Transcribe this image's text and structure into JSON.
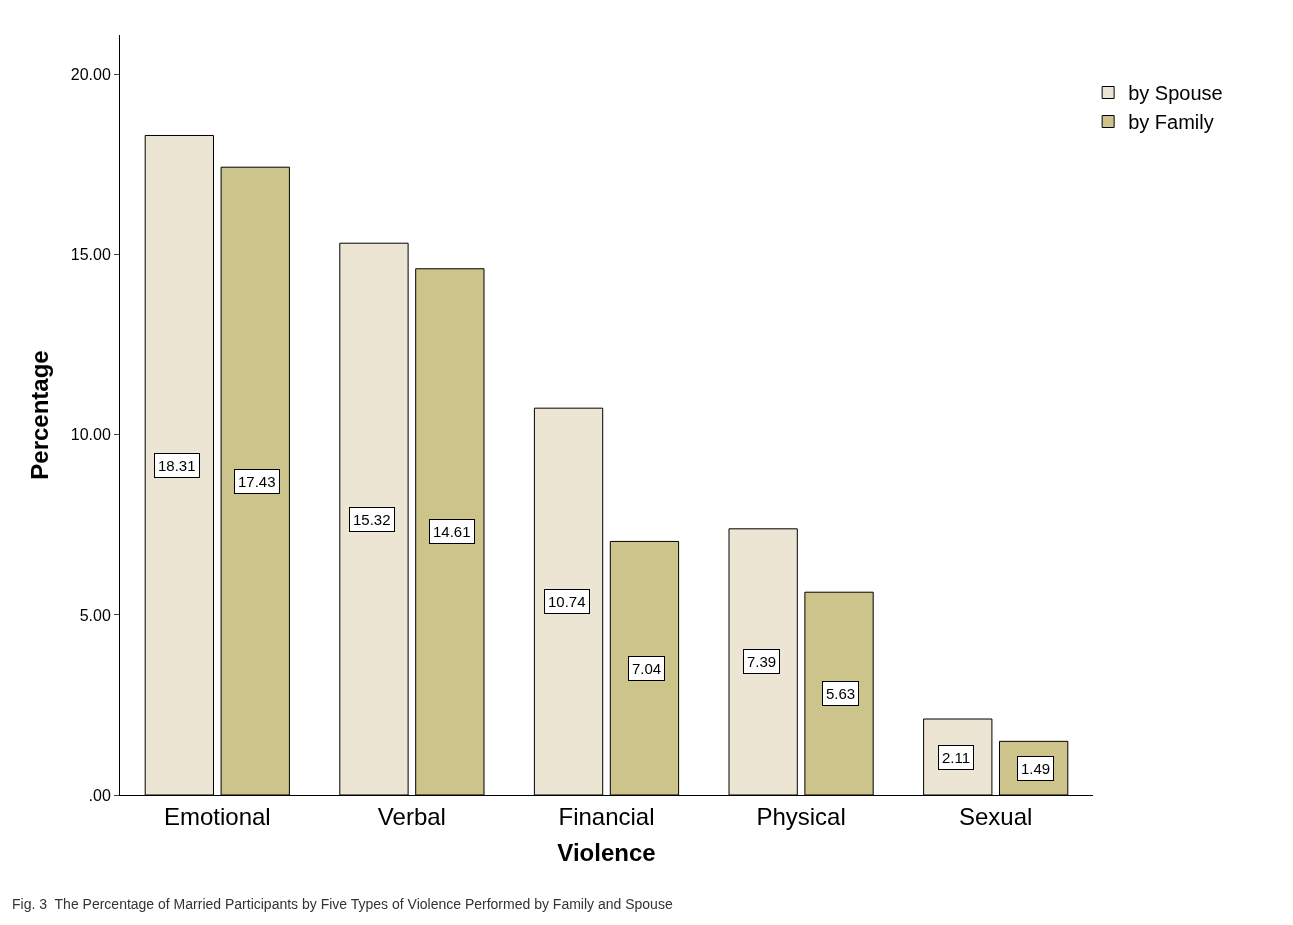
{
  "chart_data": {
    "type": "bar",
    "xlabel": "Violence",
    "ylabel": "Percentage",
    "categories": [
      "Emotional",
      "Verbal",
      "Financial",
      "Physical",
      "Sexual"
    ],
    "series": [
      {
        "name": "by Spouse",
        "color": "#ece5d3",
        "values": [
          18.31,
          15.32,
          10.74,
          7.39,
          2.11
        ]
      },
      {
        "name": "by Family",
        "color": "#ccc48a",
        "values": [
          17.43,
          14.61,
          7.04,
          5.63,
          1.49
        ]
      }
    ],
    "ylim": [
      0,
      21.1
    ],
    "yticks": [
      {
        "value": 0,
        "label": ".00"
      },
      {
        "value": 5,
        "label": "5.00"
      },
      {
        "value": 10,
        "label": "10.00"
      },
      {
        "value": 15,
        "label": "15.00"
      },
      {
        "value": 20,
        "label": "20.00"
      }
    ],
    "data_labels": true,
    "legend": "top right",
    "annotations": [
      "Fig. 3  The Percentage of Married Participants by Five Types of Violence Performed by Family and Spouse"
    ]
  }
}
